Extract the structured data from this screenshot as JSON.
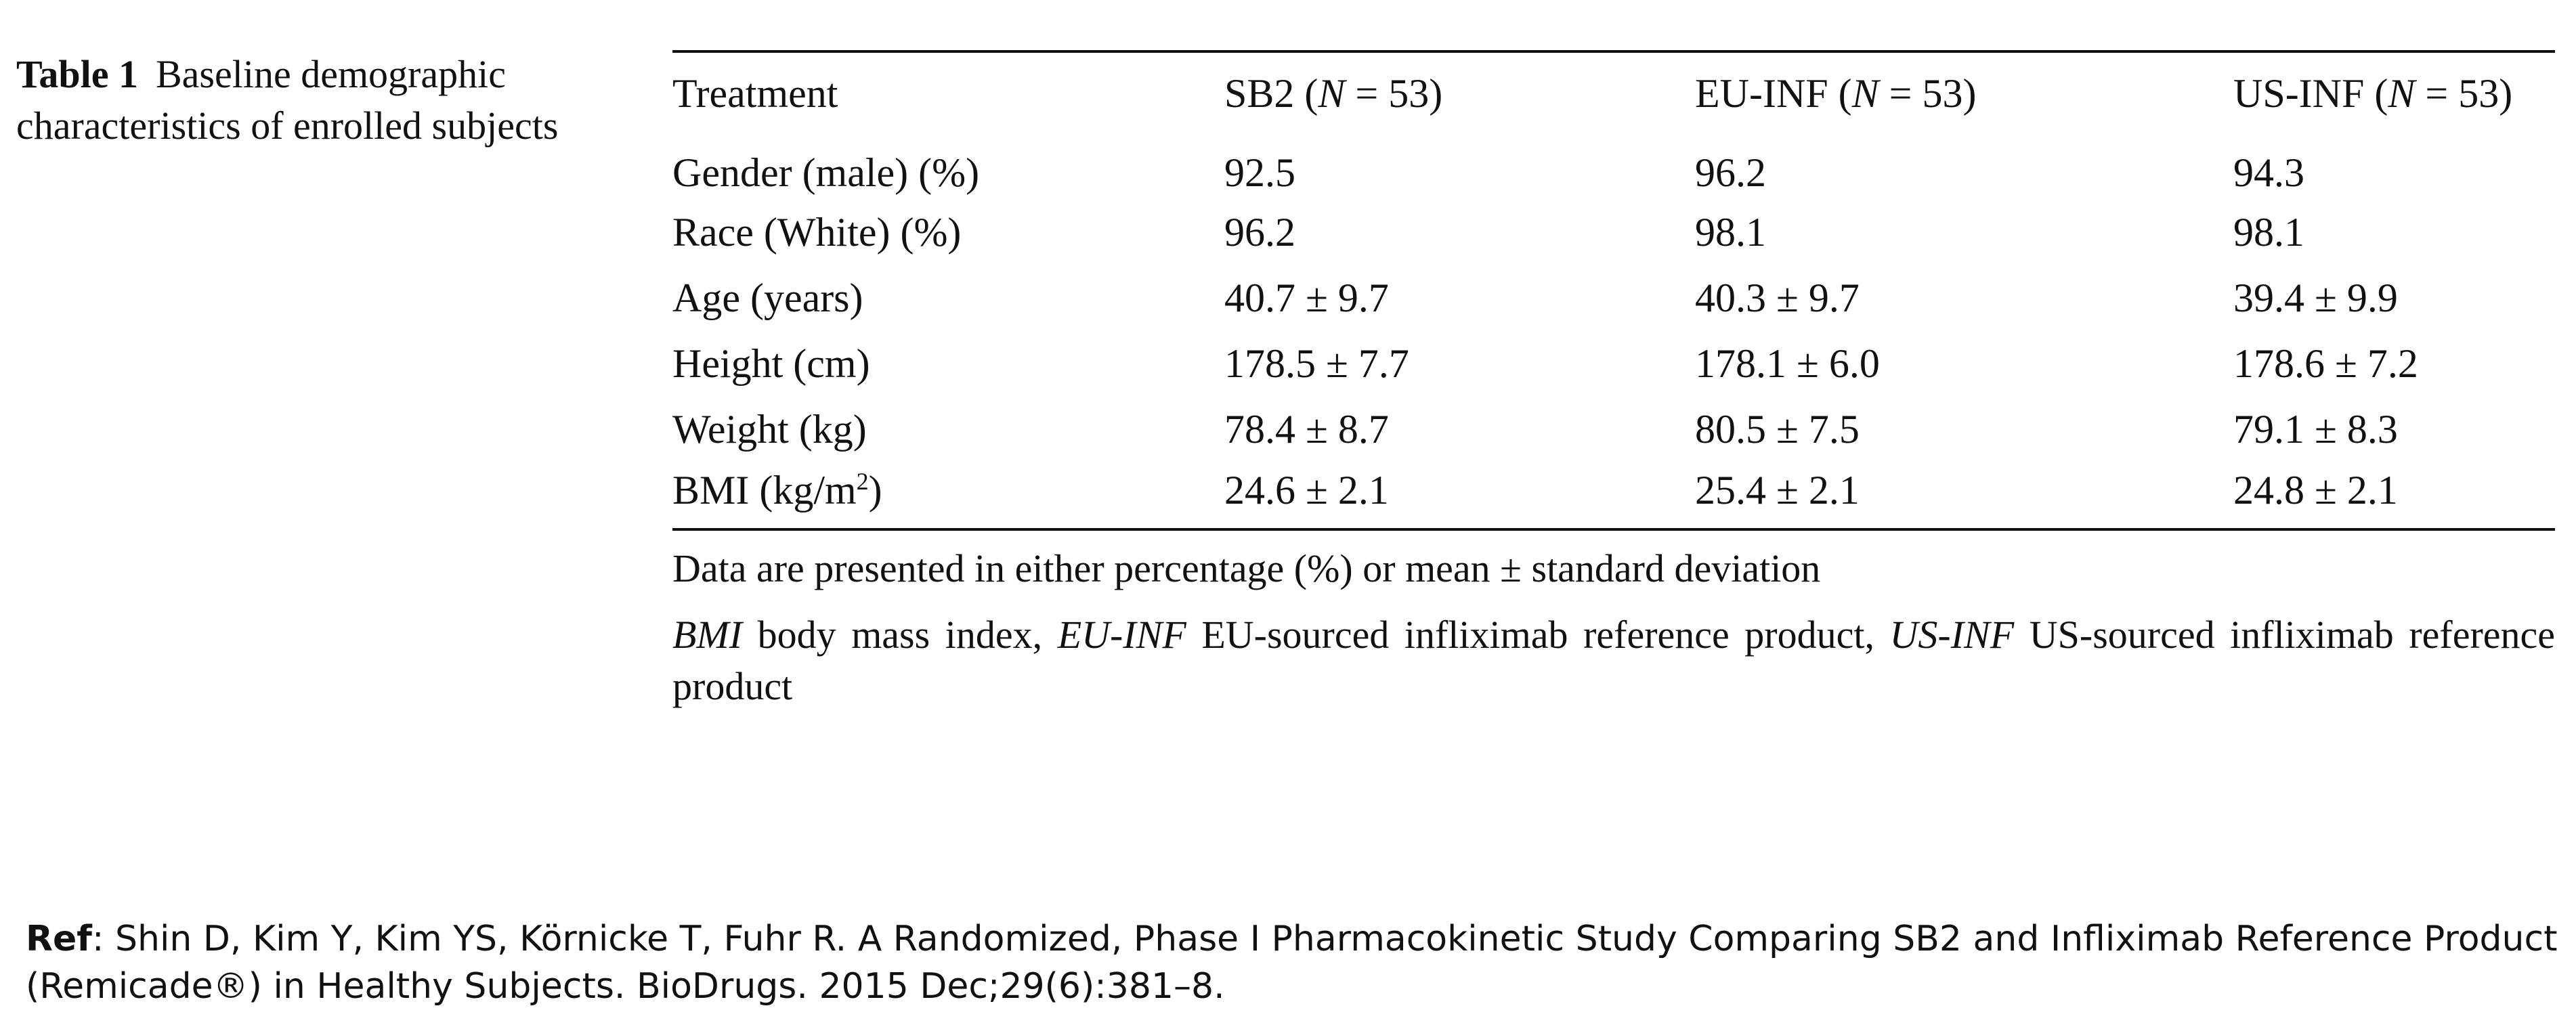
{
  "caption": {
    "label": "Table 1",
    "text": "Baseline demographic characteristics of enrolled subjects"
  },
  "table": {
    "headers": [
      "Treatment",
      "SB2 (N = 53)",
      "EU-INF (N = 53)",
      "US-INF (N = 53)"
    ],
    "header_parts": [
      {
        "pre": "Treatment",
        "n": "",
        "post": ""
      },
      {
        "pre": "SB2 (",
        "n": "N",
        "post": " = 53)"
      },
      {
        "pre": "EU-INF (",
        "n": "N",
        "post": " = 53)"
      },
      {
        "pre": "US-INF (",
        "n": "N",
        "post": " = 53)"
      }
    ],
    "rows": [
      {
        "label": "Gender (male) (%)",
        "values": [
          "92.5",
          "96.2",
          "94.3"
        ]
      },
      {
        "label": "Race (White) (%)",
        "values": [
          "96.2",
          "98.1",
          "98.1"
        ]
      },
      {
        "label": "Age (years)",
        "values": [
          "40.7 ± 9.7",
          "40.3 ± 9.7",
          "39.4 ± 9.9"
        ]
      },
      {
        "label": "Height (cm)",
        "values": [
          "178.5 ± 7.7",
          "178.1 ± 6.0",
          "178.6 ± 7.2"
        ]
      },
      {
        "label": "Weight (kg)",
        "values": [
          "78.4 ± 8.7",
          "80.5 ± 7.5",
          "79.1 ± 8.3"
        ]
      },
      {
        "label": "BMI (kg/m2)",
        "label_pre": "BMI (kg/m",
        "label_sup": "2",
        "label_post": ")",
        "values": [
          "24.6 ± 2.1",
          "25.4 ± 2.1",
          "24.8 ± 2.1"
        ]
      }
    ]
  },
  "notes": {
    "data_note": "Data are presented in either percentage (%) or mean ± standard deviation",
    "abbreviations": [
      {
        "abbr": "BMI",
        "def": " body mass index, "
      },
      {
        "abbr": "EU-INF",
        "def": " EU-sourced infliximab reference product, "
      },
      {
        "abbr": "US-INF",
        "def": " US-sourced infliximab reference product"
      }
    ]
  },
  "reference": {
    "label": "Ref",
    "text": ": Shin D, Kim Y, Kim YS, Körnicke T, Fuhr R. A Randomized, Phase I Pharmacokinetic Study Comparing SB2 and Infliximab Reference Product (Remicade®) in Healthy Subjects. BioDrugs. 2015 Dec;29(6):381–8."
  }
}
